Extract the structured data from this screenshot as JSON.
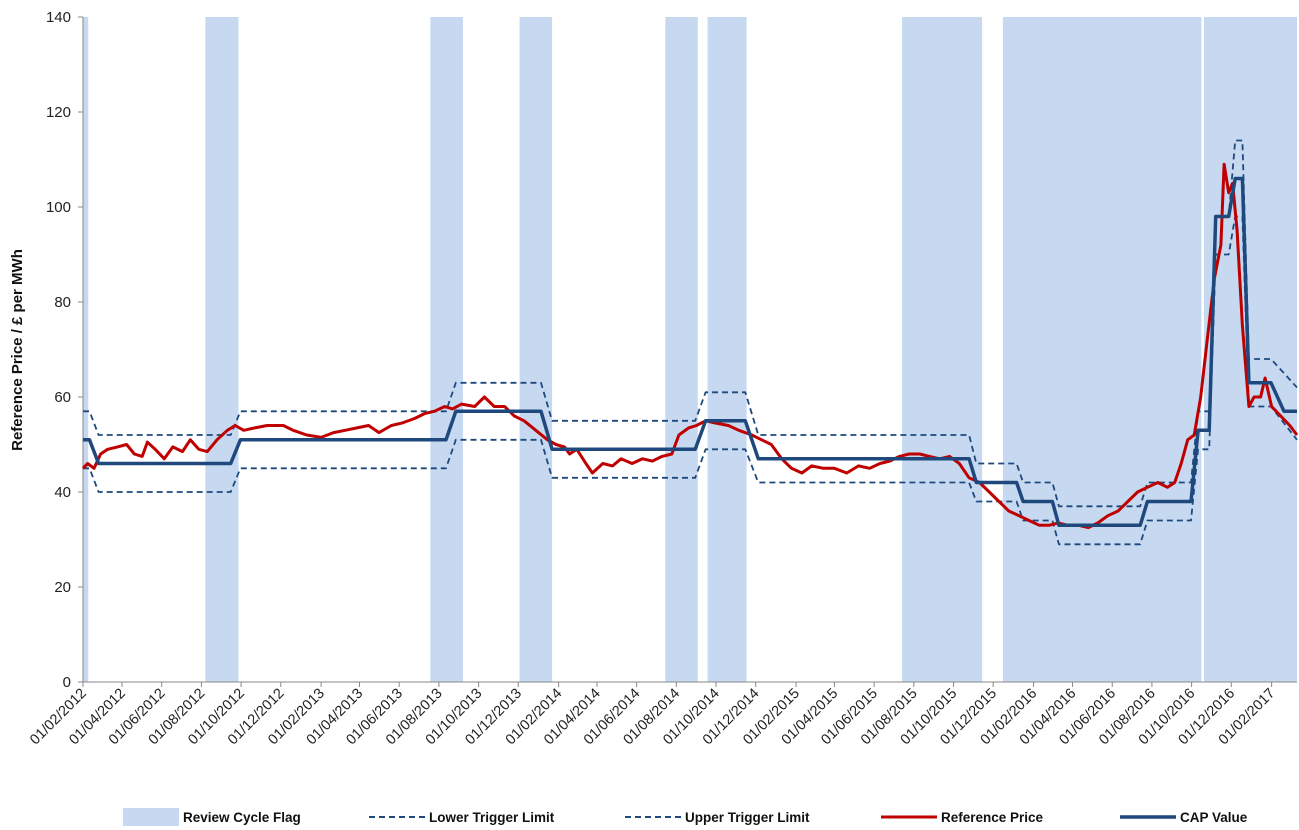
{
  "chart_data": {
    "type": "line",
    "title": "",
    "ylabel": "Reference Price / £ per MWh",
    "xlabel": "",
    "ylim": [
      0,
      140
    ],
    "yticks": [
      0,
      20,
      40,
      60,
      80,
      100,
      120,
      140
    ],
    "xlim": [
      "2012-02-01",
      "2017-03-12"
    ],
    "xticks": [
      "01/02/2012",
      "01/04/2012",
      "01/06/2012",
      "01/08/2012",
      "01/10/2012",
      "01/12/2012",
      "01/02/2013",
      "01/04/2013",
      "01/06/2013",
      "01/08/2013",
      "01/10/2013",
      "01/12/2013",
      "01/02/2014",
      "01/04/2014",
      "01/06/2014",
      "01/08/2014",
      "01/10/2014",
      "01/12/2014",
      "01/02/2015",
      "01/04/2015",
      "01/06/2015",
      "01/08/2015",
      "01/10/2015",
      "01/12/2015",
      "01/02/2016",
      "01/04/2016",
      "01/06/2016",
      "01/08/2016",
      "01/10/2016",
      "01/12/2016",
      "01/02/2017"
    ],
    "grid": false,
    "legend_position": "bottom",
    "colors": {
      "review": "#c6d9f1",
      "trigger": "#1f497d",
      "reference": "#c00000",
      "cap": "#1f497d"
    },
    "review_cycle_flag": {
      "name": "Review Cycle Flag",
      "periods": [
        [
          "2012-02-01",
          "2012-02-09"
        ],
        [
          "2012-08-07",
          "2012-09-27"
        ],
        [
          "2013-07-19",
          "2013-09-07"
        ],
        [
          "2013-12-03",
          "2014-01-22"
        ],
        [
          "2014-07-15",
          "2014-09-03"
        ],
        [
          "2014-09-18",
          "2014-11-17"
        ],
        [
          "2015-07-14",
          "2015-11-14"
        ],
        [
          "2015-12-16",
          "2016-10-16"
        ],
        [
          "2016-10-20",
          "2017-03-12"
        ]
      ]
    },
    "series": [
      {
        "name": "Lower Trigger Limit",
        "style": "dashed",
        "points": [
          [
            "2012-02-01",
            45
          ],
          [
            "2012-02-11",
            45
          ],
          [
            "2012-02-25",
            40
          ],
          [
            "2012-09-15",
            40
          ],
          [
            "2012-09-30",
            45
          ],
          [
            "2013-08-12",
            45
          ],
          [
            "2013-08-27",
            51
          ],
          [
            "2014-01-05",
            51
          ],
          [
            "2014-01-22",
            43
          ],
          [
            "2014-08-30",
            43
          ],
          [
            "2014-09-15",
            49
          ],
          [
            "2014-11-15",
            49
          ],
          [
            "2014-12-05",
            42
          ],
          [
            "2015-10-25",
            42
          ],
          [
            "2015-11-05",
            38
          ],
          [
            "2016-01-06",
            38
          ],
          [
            "2016-01-16",
            34
          ],
          [
            "2016-03-01",
            34
          ],
          [
            "2016-03-11",
            29
          ],
          [
            "2016-07-14",
            29
          ],
          [
            "2016-07-25",
            34
          ],
          [
            "2016-09-30",
            34
          ],
          [
            "2016-10-11",
            49
          ],
          [
            "2016-10-28",
            49
          ],
          [
            "2016-11-07",
            90
          ],
          [
            "2016-11-27",
            90
          ],
          [
            "2016-12-07",
            98
          ],
          [
            "2016-12-18",
            98
          ],
          [
            "2016-12-28",
            58
          ],
          [
            "2017-01-31",
            58
          ],
          [
            "2017-03-12",
            51
          ]
        ]
      },
      {
        "name": "Upper Trigger Limit",
        "style": "dashed",
        "points": [
          [
            "2012-02-01",
            57
          ],
          [
            "2012-02-11",
            57
          ],
          [
            "2012-02-25",
            52
          ],
          [
            "2012-09-15",
            52
          ],
          [
            "2012-09-30",
            57
          ],
          [
            "2013-08-12",
            57
          ],
          [
            "2013-08-27",
            63
          ],
          [
            "2014-01-05",
            63
          ],
          [
            "2014-01-22",
            55
          ],
          [
            "2014-08-30",
            55
          ],
          [
            "2014-09-15",
            61
          ],
          [
            "2014-11-15",
            61
          ],
          [
            "2014-12-05",
            52
          ],
          [
            "2015-10-25",
            52
          ],
          [
            "2015-11-05",
            46
          ],
          [
            "2016-01-06",
            46
          ],
          [
            "2016-01-16",
            42
          ],
          [
            "2016-03-01",
            42
          ],
          [
            "2016-03-11",
            37
          ],
          [
            "2016-07-14",
            37
          ],
          [
            "2016-07-25",
            42
          ],
          [
            "2016-09-30",
            42
          ],
          [
            "2016-10-11",
            57
          ],
          [
            "2016-10-28",
            57
          ],
          [
            "2016-11-07",
            98
          ],
          [
            "2016-11-27",
            98
          ],
          [
            "2016-12-07",
            114
          ],
          [
            "2016-12-18",
            114
          ],
          [
            "2016-12-28",
            68
          ],
          [
            "2017-01-31",
            68
          ],
          [
            "2017-03-12",
            62
          ]
        ]
      },
      {
        "name": "Reference Price",
        "style": "solid",
        "points": [
          [
            "2012-02-01",
            45
          ],
          [
            "2012-02-08",
            46
          ],
          [
            "2012-02-18",
            45
          ],
          [
            "2012-02-28",
            48
          ],
          [
            "2012-03-10",
            49
          ],
          [
            "2012-03-25",
            49.5
          ],
          [
            "2012-04-08",
            50
          ],
          [
            "2012-04-20",
            48
          ],
          [
            "2012-05-02",
            47.5
          ],
          [
            "2012-05-10",
            50.5
          ],
          [
            "2012-05-22",
            49
          ],
          [
            "2012-06-05",
            47
          ],
          [
            "2012-06-18",
            49.5
          ],
          [
            "2012-07-03",
            48.5
          ],
          [
            "2012-07-15",
            51
          ],
          [
            "2012-07-28",
            49
          ],
          [
            "2012-08-10",
            48.5
          ],
          [
            "2012-08-25",
            51
          ],
          [
            "2012-09-10",
            53
          ],
          [
            "2012-09-22",
            54
          ],
          [
            "2012-10-05",
            53
          ],
          [
            "2012-10-22",
            53.5
          ],
          [
            "2012-11-10",
            54
          ],
          [
            "2012-12-05",
            54
          ],
          [
            "2012-12-20",
            53
          ],
          [
            "2013-01-10",
            52
          ],
          [
            "2013-02-01",
            51.5
          ],
          [
            "2013-02-20",
            52.5
          ],
          [
            "2013-03-10",
            53
          ],
          [
            "2013-03-28",
            53.5
          ],
          [
            "2013-04-15",
            54
          ],
          [
            "2013-05-01",
            52.5
          ],
          [
            "2013-05-20",
            54
          ],
          [
            "2013-06-05",
            54.5
          ],
          [
            "2013-06-25",
            55.5
          ],
          [
            "2013-07-10",
            56.5
          ],
          [
            "2013-07-25",
            57
          ],
          [
            "2013-08-10",
            58
          ],
          [
            "2013-08-22",
            57.5
          ],
          [
            "2013-09-05",
            58.5
          ],
          [
            "2013-09-25",
            58
          ],
          [
            "2013-10-10",
            60
          ],
          [
            "2013-10-25",
            58
          ],
          [
            "2013-11-10",
            58
          ],
          [
            "2013-11-25",
            56
          ],
          [
            "2013-12-10",
            55
          ],
          [
            "2013-12-28",
            53
          ],
          [
            "2014-01-15",
            51
          ],
          [
            "2014-01-28",
            50
          ],
          [
            "2014-02-10",
            49.5
          ],
          [
            "2014-02-18",
            48
          ],
          [
            "2014-03-01",
            49
          ],
          [
            "2014-03-15",
            46
          ],
          [
            "2014-03-25",
            44
          ],
          [
            "2014-04-10",
            46
          ],
          [
            "2014-04-25",
            45.5
          ],
          [
            "2014-05-08",
            47
          ],
          [
            "2014-05-25",
            46
          ],
          [
            "2014-06-10",
            47
          ],
          [
            "2014-06-25",
            46.5
          ],
          [
            "2014-07-10",
            47.5
          ],
          [
            "2014-07-25",
            48
          ],
          [
            "2014-08-05",
            52
          ],
          [
            "2014-08-20",
            53.5
          ],
          [
            "2014-09-01",
            54
          ],
          [
            "2014-09-15",
            55
          ],
          [
            "2014-10-01",
            54.5
          ],
          [
            "2014-10-20",
            54
          ],
          [
            "2014-11-05",
            53
          ],
          [
            "2014-11-25",
            52
          ],
          [
            "2014-12-10",
            51
          ],
          [
            "2014-12-25",
            50
          ],
          [
            "2015-01-10",
            47
          ],
          [
            "2015-01-25",
            45
          ],
          [
            "2015-02-10",
            44
          ],
          [
            "2015-02-25",
            45.5
          ],
          [
            "2015-03-15",
            45
          ],
          [
            "2015-04-01",
            45
          ],
          [
            "2015-04-20",
            44
          ],
          [
            "2015-05-08",
            45.5
          ],
          [
            "2015-05-25",
            45
          ],
          [
            "2015-06-10",
            46
          ],
          [
            "2015-06-25",
            46.5
          ],
          [
            "2015-07-10",
            47.5
          ],
          [
            "2015-07-25",
            48
          ],
          [
            "2015-08-10",
            48
          ],
          [
            "2015-08-25",
            47.5
          ],
          [
            "2015-09-10",
            47
          ],
          [
            "2015-09-25",
            47.5
          ],
          [
            "2015-10-10",
            46
          ],
          [
            "2015-10-25",
            43
          ],
          [
            "2015-11-10",
            42
          ],
          [
            "2015-11-25",
            40
          ],
          [
            "2015-12-10",
            38
          ],
          [
            "2015-12-25",
            36
          ],
          [
            "2016-01-10",
            35
          ],
          [
            "2016-01-25",
            34
          ],
          [
            "2016-02-10",
            33
          ],
          [
            "2016-02-25",
            33
          ],
          [
            "2016-03-10",
            33.5
          ],
          [
            "2016-03-25",
            33
          ],
          [
            "2016-04-10",
            33
          ],
          [
            "2016-04-25",
            32.5
          ],
          [
            "2016-05-10",
            33.5
          ],
          [
            "2016-05-25",
            35
          ],
          [
            "2016-06-10",
            36
          ],
          [
            "2016-06-25",
            38
          ],
          [
            "2016-07-10",
            40
          ],
          [
            "2016-07-25",
            41
          ],
          [
            "2016-08-10",
            42
          ],
          [
            "2016-08-25",
            41
          ],
          [
            "2016-09-05",
            42
          ],
          [
            "2016-09-15",
            46
          ],
          [
            "2016-09-25",
            51
          ],
          [
            "2016-10-05",
            52
          ],
          [
            "2016-10-15",
            60
          ],
          [
            "2016-10-25",
            72
          ],
          [
            "2016-11-05",
            85
          ],
          [
            "2016-11-15",
            92
          ],
          [
            "2016-11-20",
            109
          ],
          [
            "2016-11-27",
            103
          ],
          [
            "2016-12-03",
            105
          ],
          [
            "2016-12-10",
            95
          ],
          [
            "2016-12-18",
            75
          ],
          [
            "2016-12-28",
            58
          ],
          [
            "2017-01-05",
            60
          ],
          [
            "2017-01-15",
            60
          ],
          [
            "2017-01-22",
            64
          ],
          [
            "2017-02-01",
            58
          ],
          [
            "2017-02-15",
            56
          ],
          [
            "2017-03-01",
            54
          ],
          [
            "2017-03-12",
            52
          ]
        ]
      },
      {
        "name": "CAP Value",
        "style": "solid",
        "points": [
          [
            "2012-02-01",
            51
          ],
          [
            "2012-02-11",
            51
          ],
          [
            "2012-02-25",
            46
          ],
          [
            "2012-09-15",
            46
          ],
          [
            "2012-09-30",
            51
          ],
          [
            "2013-08-12",
            51
          ],
          [
            "2013-08-27",
            57
          ],
          [
            "2014-01-05",
            57
          ],
          [
            "2014-01-22",
            49
          ],
          [
            "2014-08-30",
            49
          ],
          [
            "2014-09-15",
            55
          ],
          [
            "2014-11-15",
            55
          ],
          [
            "2014-12-05",
            47
          ],
          [
            "2015-10-25",
            47
          ],
          [
            "2015-11-05",
            42
          ],
          [
            "2016-01-06",
            42
          ],
          [
            "2016-01-16",
            38
          ],
          [
            "2016-03-01",
            38
          ],
          [
            "2016-03-11",
            33
          ],
          [
            "2016-07-14",
            33
          ],
          [
            "2016-07-25",
            38
          ],
          [
            "2016-09-30",
            38
          ],
          [
            "2016-10-11",
            53
          ],
          [
            "2016-10-28",
            53
          ],
          [
            "2016-11-07",
            98
          ],
          [
            "2016-11-27",
            98
          ],
          [
            "2016-12-07",
            106
          ],
          [
            "2016-12-18",
            106
          ],
          [
            "2016-12-28",
            63
          ],
          [
            "2017-01-31",
            63
          ],
          [
            "2017-02-20",
            57
          ],
          [
            "2017-03-12",
            57
          ]
        ]
      }
    ],
    "legend": [
      {
        "label": "Review Cycle Flag",
        "kind": "band"
      },
      {
        "label": "Lower Trigger Limit",
        "kind": "dashed"
      },
      {
        "label": "Upper Trigger Limit",
        "kind": "dashed"
      },
      {
        "label": "Reference Price",
        "kind": "solid-red"
      },
      {
        "label": "CAP Value",
        "kind": "solid-blue"
      }
    ]
  }
}
